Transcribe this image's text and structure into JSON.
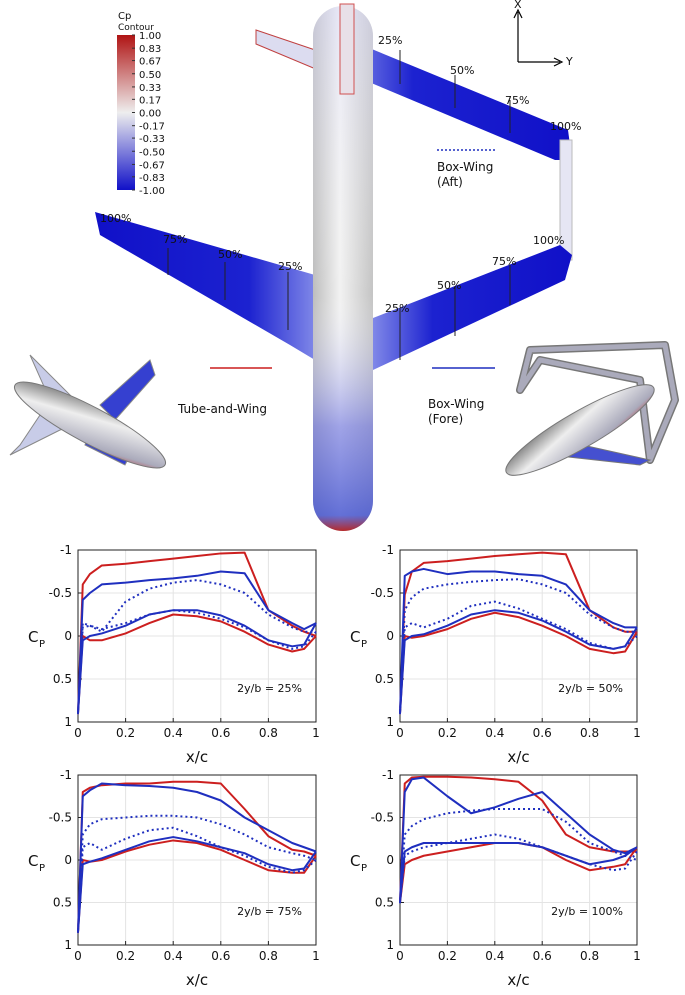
{
  "illustration": {
    "colorbar": {
      "title": "Cp",
      "subtitle": "Contour",
      "ticks": [
        {
          "value": 1,
          "label": "1.00"
        },
        {
          "value": 0.83,
          "label": "0.83"
        },
        {
          "value": 0.67,
          "label": "0.67"
        },
        {
          "value": 0.5,
          "label": "0.50"
        },
        {
          "value": 0.33,
          "label": "0.33"
        },
        {
          "value": 0.17,
          "label": "0.17"
        },
        {
          "value": 0,
          "label": "0.00"
        },
        {
          "value": -0.17,
          "label": "-0.17"
        },
        {
          "value": -0.33,
          "label": "-0.33"
        },
        {
          "value": -0.5,
          "label": "-0.50"
        },
        {
          "value": -0.67,
          "label": "-0.67"
        },
        {
          "value": -0.83,
          "label": "-0.83"
        },
        {
          "value": -1,
          "label": "-1.00"
        }
      ]
    },
    "axes_labels": [
      "X",
      "Y"
    ],
    "aft_wing_labels": [
      "25%",
      "50%",
      "75%",
      "100%"
    ],
    "fore_right_wing_labels": [
      "25%",
      "50%",
      "75%",
      "100%"
    ],
    "fore_left_wing_labels": [
      "100%",
      "75%",
      "50%",
      "25%"
    ]
  },
  "chart_data": [
    {
      "type": "line",
      "annotation": "2y/b = 25%",
      "xlabel": "x/c",
      "ylabel": "C",
      "ylabel_subscript": "P",
      "x": [
        1,
        0.95,
        0.9,
        0.8,
        0.7,
        0.6,
        0.5,
        0.4,
        0.3,
        0.2,
        0.1,
        0.05,
        0.02,
        0,
        0.02,
        0.05,
        0.1,
        0.2,
        0.3,
        0.4,
        0.5,
        0.6,
        0.7,
        0.8,
        0.9,
        0.95,
        1
      ],
      "xlim": [
        0,
        1
      ],
      "xticks": [
        0,
        0.2,
        0.4,
        0.6,
        0.8,
        1
      ],
      "ylim": [
        1,
        -1
      ],
      "yticks": [
        -1,
        -0.5,
        0,
        0.5,
        1
      ],
      "grid": true,
      "series": [
        {
          "name": "Tube-and-Wing",
          "color": "#cc1f1f",
          "linestyle": "solid",
          "values": [
            0.0,
            0.15,
            0.18,
            0.1,
            -0.05,
            -0.17,
            -0.23,
            -0.25,
            -0.15,
            -0.03,
            0.05,
            0.05,
            0.0,
            0.9,
            -0.6,
            -0.72,
            -0.82,
            -0.84,
            -0.87,
            -0.9,
            -0.93,
            -0.96,
            -0.97,
            -0.3,
            -0.12,
            -0.05,
            0.0
          ]
        },
        {
          "name": "Box-Wing (Fore)",
          "color": "#1f2fbf",
          "linestyle": "solid",
          "values": [
            -0.15,
            0.1,
            0.12,
            0.05,
            -0.12,
            -0.24,
            -0.3,
            -0.3,
            -0.25,
            -0.12,
            -0.03,
            0.0,
            0.05,
            0.9,
            -0.42,
            -0.5,
            -0.6,
            -0.62,
            -0.65,
            -0.67,
            -0.7,
            -0.75,
            -0.73,
            -0.3,
            -0.15,
            -0.08,
            -0.15
          ]
        },
        {
          "name": "Box-Wing (Aft)",
          "color": "#1f2fbf",
          "linestyle": "dotted",
          "values": [
            -0.05,
            0.12,
            0.15,
            0.05,
            -0.1,
            -0.2,
            -0.27,
            -0.3,
            -0.25,
            -0.15,
            -0.08,
            -0.12,
            -0.1,
            0.9,
            -0.15,
            -0.12,
            -0.05,
            -0.4,
            -0.55,
            -0.62,
            -0.65,
            -0.6,
            -0.5,
            -0.25,
            -0.1,
            -0.05,
            -0.05
          ]
        }
      ]
    },
    {
      "type": "line",
      "annotation": "2y/b = 50%",
      "xlabel": "x/c",
      "ylabel": "C",
      "ylabel_subscript": "P",
      "x": [
        1,
        0.95,
        0.9,
        0.8,
        0.7,
        0.6,
        0.5,
        0.4,
        0.3,
        0.2,
        0.1,
        0.05,
        0.02,
        0,
        0.02,
        0.05,
        0.1,
        0.2,
        0.3,
        0.4,
        0.5,
        0.6,
        0.7,
        0.8,
        0.9,
        0.95,
        1
      ],
      "xlim": [
        0,
        1
      ],
      "xticks": [
        0,
        0.2,
        0.4,
        0.6,
        0.8,
        1
      ],
      "ylim": [
        1,
        -1
      ],
      "yticks": [
        -1,
        -0.5,
        0,
        0.5,
        1
      ],
      "grid": true,
      "series": [
        {
          "color": "#cc1f1f",
          "linestyle": "solid",
          "values": [
            -0.05,
            0.18,
            0.2,
            0.15,
            0.0,
            -0.12,
            -0.22,
            -0.27,
            -0.2,
            -0.08,
            0.0,
            0.02,
            0.0,
            0.9,
            -0.48,
            -0.75,
            -0.85,
            -0.87,
            -0.9,
            -0.93,
            -0.95,
            -0.97,
            -0.95,
            -0.3,
            -0.1,
            -0.05,
            -0.05
          ]
        },
        {
          "color": "#1f2fbf",
          "linestyle": "solid",
          "values": [
            -0.1,
            0.12,
            0.15,
            0.1,
            -0.05,
            -0.18,
            -0.27,
            -0.3,
            -0.25,
            -0.12,
            -0.02,
            0.0,
            0.05,
            0.9,
            -0.7,
            -0.75,
            -0.78,
            -0.72,
            -0.75,
            -0.75,
            -0.72,
            -0.7,
            -0.6,
            -0.3,
            -0.15,
            -0.1,
            -0.1
          ]
        },
        {
          "color": "#1f2fbf",
          "linestyle": "dotted",
          "values": [
            0.0,
            0.12,
            0.15,
            0.08,
            -0.08,
            -0.2,
            -0.32,
            -0.4,
            -0.35,
            -0.2,
            -0.1,
            -0.15,
            -0.1,
            0.9,
            -0.3,
            -0.45,
            -0.55,
            -0.6,
            -0.63,
            -0.65,
            -0.66,
            -0.6,
            -0.5,
            -0.25,
            -0.1,
            -0.05,
            -0.05
          ]
        }
      ]
    },
    {
      "type": "line",
      "annotation": "2y/b = 75%",
      "xlabel": "x/c",
      "ylabel": "C",
      "ylabel_subscript": "P",
      "x": [
        1,
        0.95,
        0.9,
        0.8,
        0.7,
        0.6,
        0.5,
        0.4,
        0.3,
        0.2,
        0.1,
        0.05,
        0.02,
        0,
        0.02,
        0.05,
        0.1,
        0.2,
        0.3,
        0.4,
        0.5,
        0.6,
        0.7,
        0.8,
        0.9,
        0.95,
        1
      ],
      "xlim": [
        0,
        1
      ],
      "xticks": [
        0,
        0.2,
        0.4,
        0.6,
        0.8,
        1
      ],
      "ylim": [
        1,
        -1
      ],
      "yticks": [
        -1,
        -0.5,
        0,
        0.5,
        1
      ],
      "grid": true,
      "series": [
        {
          "color": "#cc1f1f",
          "linestyle": "solid",
          "values": [
            -0.05,
            0.15,
            0.15,
            0.12,
            0.0,
            -0.12,
            -0.2,
            -0.23,
            -0.18,
            -0.1,
            0.0,
            0.02,
            0.0,
            0.85,
            -0.8,
            -0.85,
            -0.88,
            -0.9,
            -0.9,
            -0.92,
            -0.92,
            -0.9,
            -0.6,
            -0.28,
            -0.12,
            -0.1,
            -0.05
          ]
        },
        {
          "color": "#1f2fbf",
          "linestyle": "solid",
          "values": [
            -0.1,
            0.1,
            0.12,
            0.05,
            -0.08,
            -0.15,
            -0.22,
            -0.27,
            -0.22,
            -0.12,
            -0.02,
            0.02,
            0.05,
            0.85,
            -0.75,
            -0.82,
            -0.9,
            -0.88,
            -0.87,
            -0.85,
            -0.8,
            -0.7,
            -0.5,
            -0.35,
            -0.2,
            -0.15,
            -0.1
          ]
        },
        {
          "color": "#1f2fbf",
          "linestyle": "dotted",
          "values": [
            0.0,
            0.12,
            0.15,
            0.08,
            -0.05,
            -0.15,
            -0.28,
            -0.38,
            -0.35,
            -0.25,
            -0.12,
            -0.2,
            -0.15,
            0.85,
            -0.3,
            -0.42,
            -0.48,
            -0.5,
            -0.52,
            -0.52,
            -0.5,
            -0.42,
            -0.3,
            -0.15,
            -0.08,
            -0.05,
            0.0
          ]
        }
      ]
    },
    {
      "type": "line",
      "annotation": "2y/b = 100%",
      "xlabel": "x/c",
      "ylabel": "C",
      "ylabel_subscript": "P",
      "x": [
        1,
        0.95,
        0.9,
        0.8,
        0.7,
        0.6,
        0.5,
        0.4,
        0.3,
        0.2,
        0.1,
        0.05,
        0.02,
        0,
        0.02,
        0.05,
        0.1,
        0.2,
        0.3,
        0.4,
        0.5,
        0.6,
        0.7,
        0.8,
        0.9,
        0.95,
        1
      ],
      "xlim": [
        0,
        1
      ],
      "xticks": [
        0,
        0.2,
        0.4,
        0.6,
        0.8,
        1
      ],
      "ylim": [
        1,
        -1
      ],
      "yticks": [
        -1,
        -0.5,
        0,
        0.5,
        1
      ],
      "grid": true,
      "series": [
        {
          "color": "#cc1f1f",
          "linestyle": "solid",
          "values": [
            -0.15,
            0.05,
            0.08,
            0.12,
            0.0,
            -0.15,
            -0.2,
            -0.2,
            -0.15,
            -0.1,
            -0.05,
            0.0,
            0.05,
            0.5,
            -0.9,
            -0.97,
            -0.98,
            -0.98,
            -0.97,
            -0.95,
            -0.92,
            -0.7,
            -0.3,
            -0.15,
            -0.1,
            -0.1,
            -0.1
          ]
        },
        {
          "color": "#1f2fbf",
          "linestyle": "solid",
          "values": [
            -0.15,
            -0.05,
            0.0,
            0.05,
            -0.05,
            -0.15,
            -0.2,
            -0.2,
            -0.2,
            -0.2,
            -0.2,
            -0.15,
            -0.1,
            0.5,
            -0.8,
            -0.95,
            -0.97,
            -0.75,
            -0.55,
            -0.62,
            -0.72,
            -0.8,
            -0.55,
            -0.3,
            -0.12,
            -0.08,
            -0.15
          ]
        },
        {
          "color": "#1f2fbf",
          "linestyle": "dotted",
          "values": [
            -0.1,
            0.1,
            0.12,
            0.05,
            -0.05,
            -0.15,
            -0.25,
            -0.3,
            -0.25,
            -0.2,
            -0.15,
            -0.1,
            -0.05,
            0.5,
            -0.3,
            -0.4,
            -0.48,
            -0.55,
            -0.58,
            -0.6,
            -0.6,
            -0.6,
            -0.45,
            -0.2,
            -0.1,
            -0.05,
            0.0
          ]
        }
      ]
    }
  ]
}
